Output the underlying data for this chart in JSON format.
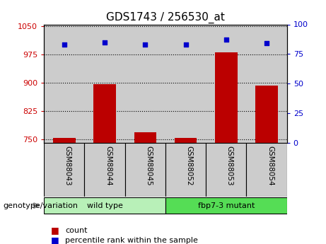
{
  "title": "GDS1743 / 256530_at",
  "samples": [
    "GSM88043",
    "GSM88044",
    "GSM88045",
    "GSM88052",
    "GSM88053",
    "GSM88054"
  ],
  "bar_values": [
    752,
    895,
    768,
    752,
    980,
    893
  ],
  "dot_values": [
    83,
    85,
    83,
    83,
    87,
    84
  ],
  "groups": [
    {
      "label": "wild type",
      "indices": [
        0,
        1,
        2
      ],
      "color": "#b8f0b8"
    },
    {
      "label": "fbp7-3 mutant",
      "indices": [
        3,
        4,
        5
      ],
      "color": "#55dd55"
    }
  ],
  "ylim_left": [
    740,
    1055
  ],
  "ylim_right": [
    0,
    100
  ],
  "yticks_left": [
    750,
    825,
    900,
    975,
    1050
  ],
  "yticks_right": [
    0,
    25,
    50,
    75,
    100
  ],
  "bar_color": "#bb0000",
  "dot_color": "#0000cc",
  "grid_color": "#000000",
  "col_bg_color": "#cccccc",
  "bar_width": 0.55,
  "legend_items": [
    {
      "label": "count",
      "color": "#bb0000"
    },
    {
      "label": "percentile rank within the sample",
      "color": "#0000cc"
    }
  ],
  "genotype_label": "genotype/variation",
  "tick_color_left": "#cc0000",
  "tick_color_right": "#0000cc",
  "title_fontsize": 11,
  "label_fontsize": 8,
  "tick_fontsize": 8,
  "sample_fontsize": 7.5
}
